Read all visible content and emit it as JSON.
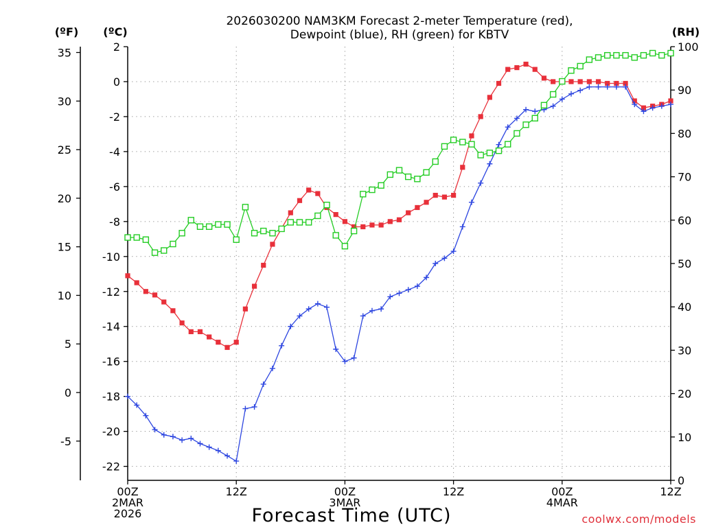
{
  "chart_data": {
    "type": "line",
    "title_lines": [
      "2026030200 NAM3KM Forecast 2-meter Temperature (red),",
      "Dewpoint (blue), RH (green) for KBTV"
    ],
    "xlabel": "Forecast Time (UTC)",
    "credit": "coolwx.com/models",
    "x_unit": "forecast hour",
    "x_range": [
      0,
      60
    ],
    "x_ticks": [
      {
        "hour": 0,
        "lines": [
          "00Z",
          "2MAR",
          "2026"
        ]
      },
      {
        "hour": 12,
        "lines": [
          "12Z"
        ]
      },
      {
        "hour": 24,
        "lines": [
          "00Z",
          "3MAR"
        ]
      },
      {
        "hour": 36,
        "lines": [
          "12Z"
        ]
      },
      {
        "hour": 48,
        "lines": [
          "00Z",
          "4MAR"
        ]
      },
      {
        "hour": 60,
        "lines": [
          "12Z"
        ]
      }
    ],
    "axes": {
      "fahrenheit": {
        "label": "(ºF)",
        "ticks": [
          35,
          30,
          25,
          20,
          15,
          10,
          5,
          0,
          -5
        ]
      },
      "celsius": {
        "label": "(ºC)",
        "range": [
          -22.8,
          2.0
        ],
        "ticks": [
          2,
          0,
          -2,
          -4,
          -6,
          -8,
          -10,
          -12,
          -14,
          -16,
          -18,
          -20,
          -22
        ]
      },
      "rh": {
        "label": "(RH)",
        "range": [
          0,
          100
        ],
        "ticks": [
          100,
          90,
          80,
          70,
          60,
          50,
          40,
          30,
          20,
          10,
          0
        ]
      }
    },
    "series": [
      {
        "name": "2-meter Temperature",
        "unit": "C",
        "color": "#e8303a",
        "marker": "filled-square",
        "values": [
          -11.1,
          -11.5,
          -12.0,
          -12.2,
          -12.6,
          -13.1,
          -13.8,
          -14.3,
          -14.3,
          -14.6,
          -14.9,
          -15.2,
          -14.9,
          -13.0,
          -11.7,
          -10.5,
          -9.3,
          -8.4,
          -7.5,
          -6.8,
          -6.2,
          -6.4,
          -7.2,
          -7.6,
          -8.0,
          -8.3,
          -8.3,
          -8.2,
          -8.2,
          -8.0,
          -7.9,
          -7.5,
          -7.2,
          -6.9,
          -6.5,
          -6.6,
          -6.5,
          -4.9,
          -3.1,
          -2.0,
          -0.9,
          -0.1,
          0.7,
          0.8,
          1.0,
          0.7,
          0.2,
          0.0,
          0.0,
          0.0,
          0.0,
          0.0,
          0.0,
          -0.1,
          -0.1,
          -0.1,
          -1.1,
          -1.5,
          -1.4,
          -1.3,
          -1.1
        ]
      },
      {
        "name": "Dewpoint",
        "unit": "C",
        "color": "#2c45e0",
        "marker": "plus",
        "values": [
          -18.0,
          -18.5,
          -19.1,
          -19.9,
          -20.2,
          -20.3,
          -20.5,
          -20.4,
          -20.7,
          -20.9,
          -21.1,
          -21.4,
          -21.7,
          -18.7,
          -18.6,
          -17.3,
          -16.4,
          -15.1,
          -14.0,
          -13.4,
          -13.0,
          -12.7,
          -12.9,
          -15.3,
          -16.0,
          -15.8,
          -13.4,
          -13.1,
          -13.0,
          -12.3,
          -12.1,
          -11.9,
          -11.7,
          -11.2,
          -10.4,
          -10.1,
          -9.7,
          -8.3,
          -6.9,
          -5.8,
          -4.7,
          -3.6,
          -2.6,
          -2.1,
          -1.6,
          -1.7,
          -1.6,
          -1.4,
          -1.0,
          -0.7,
          -0.5,
          -0.3,
          -0.3,
          -0.3,
          -0.3,
          -0.3,
          -1.3,
          -1.7,
          -1.5,
          -1.4,
          -1.3
        ]
      },
      {
        "name": "RH",
        "unit": "%",
        "color": "#22cc22",
        "marker": "open-square",
        "values": [
          56,
          56,
          55.5,
          52.5,
          53,
          54.5,
          57,
          60,
          58.5,
          58.5,
          59,
          59,
          55.5,
          63,
          57,
          57.5,
          57,
          58,
          59.5,
          59.5,
          59.5,
          61,
          63.5,
          56.5,
          54,
          57.5,
          66,
          67,
          68,
          70.5,
          71.5,
          70,
          69.5,
          71,
          73.5,
          77,
          78.5,
          78,
          77.5,
          75,
          75.5,
          76,
          77.5,
          80,
          82,
          83.5,
          86.5,
          89,
          92,
          94.5,
          95.5,
          97,
          97.5,
          98,
          98,
          98,
          97.5,
          98,
          98.5,
          98,
          98.5
        ]
      }
    ]
  }
}
